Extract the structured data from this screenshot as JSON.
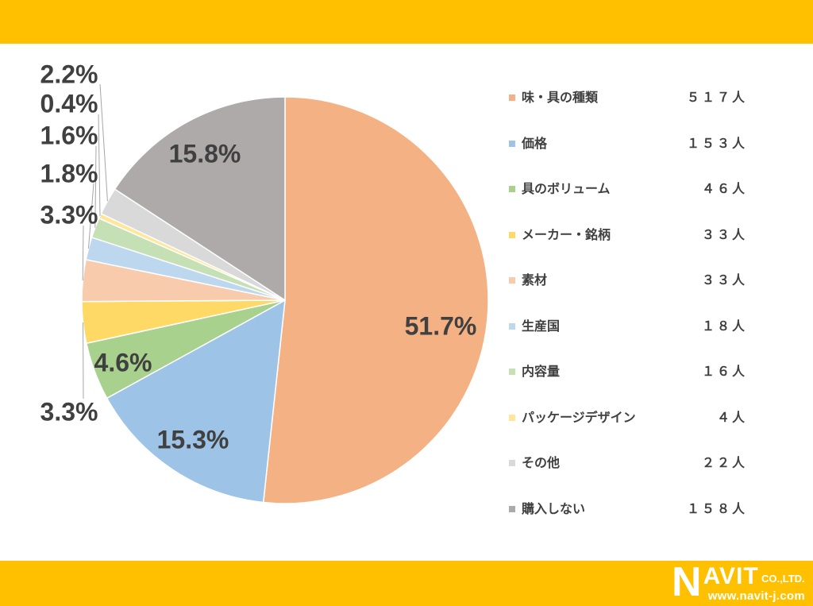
{
  "page": {
    "band_color": "#FFC000"
  },
  "chart_data": {
    "type": "pie",
    "legend_position": "right",
    "slices": [
      {
        "label": "味・具の種類",
        "value": 517,
        "value_label": "５１７人",
        "percent_label": "51.7%",
        "color": "#F4B183"
      },
      {
        "label": "価格",
        "value": 153,
        "value_label": "１５３人",
        "percent_label": "15.3%",
        "color": "#9DC3E6"
      },
      {
        "label": "具のボリューム",
        "value": 46,
        "value_label": "４６人",
        "percent_label": "4.6%",
        "color": "#A9D18E"
      },
      {
        "label": "メーカー・銘柄",
        "value": 33,
        "value_label": "３３人",
        "percent_label": "3.3%",
        "color": "#FFD966"
      },
      {
        "label": "素材",
        "value": 33,
        "value_label": "３３人",
        "percent_label": "3.3%",
        "color": "#F8CBAD"
      },
      {
        "label": "生産国",
        "value": 18,
        "value_label": "１８人",
        "percent_label": "1.8%",
        "color": "#BDD7EE"
      },
      {
        "label": "内容量",
        "value": 16,
        "value_label": "１６人",
        "percent_label": "1.6%",
        "color": "#C5E0B4"
      },
      {
        "label": "パッケージデザイン",
        "value": 4,
        "value_label": "４人",
        "percent_label": "0.4%",
        "color": "#FFE699"
      },
      {
        "label": "その他",
        "value": 22,
        "value_label": "２２人",
        "percent_label": "2.2%",
        "color": "#D9D9D9"
      },
      {
        "label": "購入しない",
        "value": 158,
        "value_label": "１５８人",
        "percent_label": "15.8%",
        "color": "#AEAAAA"
      }
    ]
  },
  "logo": {
    "text": "NAVIT",
    "suffix": "CO.,LTD.",
    "url": "www.navit-j.com"
  }
}
